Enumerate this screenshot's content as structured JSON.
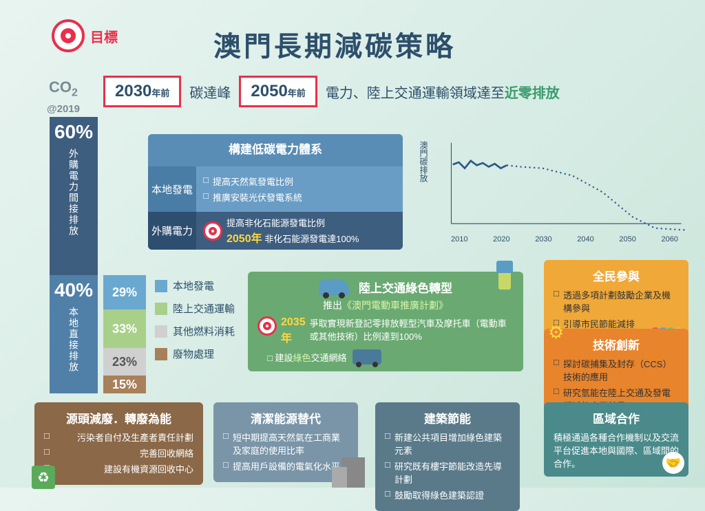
{
  "header": {
    "target_label": "目標"
  },
  "title": "澳門長期減碳策略",
  "goals": {
    "g1_year": "2030",
    "g1_suffix": "年前",
    "g1_text": "碳達峰",
    "g2_year": "2050",
    "g2_suffix": "年前",
    "g2_text_a": "電力、陸上交通運輸領域達至",
    "g2_text_b": "近零排放"
  },
  "co2": {
    "label": "CO",
    "sub": "2",
    "year": "@2019"
  },
  "main_bars": {
    "b60_pct": "60%",
    "b60_label": "外購電力間接排放",
    "b40_pct": "40%",
    "b40_label": "本地直接排放"
  },
  "sub_bars": {
    "s1_pct": "29%",
    "s1_label": "本地發電",
    "s1_color": "#6aa8d0",
    "s2_pct": "33%",
    "s2_label": "陸上交通運輸",
    "s2_color": "#a8d088",
    "s3_pct": "23%",
    "s3_label": "其他燃料消耗",
    "s3_color": "#d0d0d0",
    "s4_pct": "15%",
    "s4_label": "廢物處理",
    "s4_color": "#a8805a"
  },
  "power": {
    "title": "構建低碳電力體系",
    "local_label": "本地發電",
    "local_1": "提高天然氣發電比例",
    "local_2": "推廣安裝光伏發電系統",
    "ext_label": "外購電力",
    "ext_year": "2050年",
    "ext_1": "提高非化石能源發電比例",
    "ext_2": "非化石能源發電達100%"
  },
  "transport": {
    "title": "陸上交通綠色轉型",
    "sub_a": "推出",
    "sub_b": "《澳門電動車推廣計劃》",
    "year": "2035年",
    "goal": "爭取實現新登記零排放輕型汽車及摩托車（電動車或其他技術）比例達到100%",
    "net_a": "建設",
    "net_b": "綠色",
    "net_c": "交通網絡"
  },
  "waste": {
    "title": "源頭減廢．轉廢為能",
    "i1": "污染者自付及生產者責任計劃",
    "i2": "完善回收網絡",
    "i3": "建設有機資源回收中心"
  },
  "clean": {
    "title": "清潔能源替代",
    "i1": "短中期提高天然氣在工商業及家庭的使用比率",
    "i2": "提高用戶設備的電氣化水平"
  },
  "build": {
    "title": "建築節能",
    "i1": "新建公共項目增加綠色建築元素",
    "i2": "研究既有樓宇節能改造先導計劃",
    "i3": "鼓勵取得綠色建築認證"
  },
  "all": {
    "title": "全民參與",
    "i1": "透過多項計劃鼓勵企業及機構參與",
    "i2": "引導市民節能減排"
  },
  "tech": {
    "title": "技術創新",
    "i1": "探討碳捕集及封存（CCS）技術的應用",
    "i2": "研究氫能在陸上交通及發電領域的應用前景"
  },
  "region": {
    "title": "區域合作",
    "text": "積極通過各種合作機制以及交流平台促進本地與國際、區域間的合作。"
  },
  "chart": {
    "ylabel": "澳門碳排放",
    "xlabels": [
      "2010",
      "2020",
      "2030",
      "2040",
      "2050",
      "2060"
    ],
    "line_color": "#2d5a8a",
    "solid_points": [
      [
        0,
        25
      ],
      [
        8,
        22
      ],
      [
        16,
        30
      ],
      [
        24,
        20
      ],
      [
        32,
        26
      ],
      [
        40,
        23
      ],
      [
        48,
        28
      ],
      [
        56,
        24
      ],
      [
        64,
        30
      ],
      [
        72,
        26
      ]
    ],
    "dotted_points": [
      [
        72,
        26
      ],
      [
        90,
        28
      ],
      [
        120,
        30
      ],
      [
        160,
        40
      ],
      [
        200,
        62
      ],
      [
        240,
        95
      ],
      [
        270,
        110
      ],
      [
        300,
        112
      ],
      [
        330,
        113
      ]
    ]
  },
  "colors": {
    "bg": "#e8f4f0",
    "accent": "#e8304c",
    "navy": "#2d4f6b",
    "blue1": "#3e5e80",
    "blue2": "#5080a8",
    "green": "#6aaa72",
    "orange1": "#f0a838",
    "orange2": "#e8842c",
    "brown": "#8a6848",
    "teal": "#4a8a8a"
  }
}
